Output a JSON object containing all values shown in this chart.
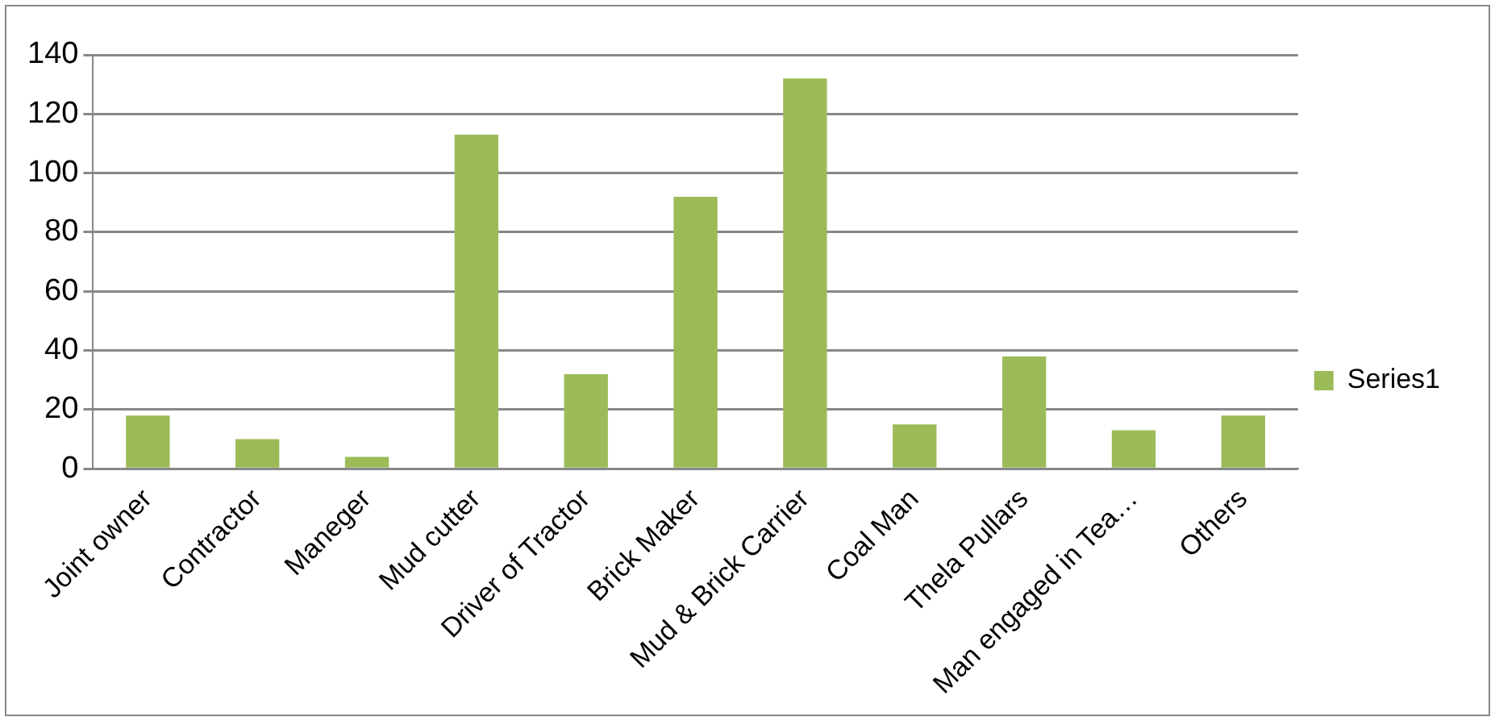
{
  "chart_data": {
    "type": "bar",
    "categories": [
      "Joint owner",
      "Contractor",
      "Maneger",
      "Mud cutter",
      "Driver of Tractor",
      "Brick Maker",
      "Mud & Brick Carrier",
      "Coal Man",
      "Thela Pullars",
      "Man engaged in Tea…",
      "Others"
    ],
    "series": [
      {
        "name": "Series1",
        "color": "#9bbb59",
        "values": [
          18,
          10,
          4,
          113,
          32,
          92,
          132,
          15,
          38,
          13,
          18
        ]
      }
    ],
    "ylim": [
      0,
      140
    ],
    "yticks": [
      0,
      20,
      40,
      60,
      80,
      100,
      120,
      140
    ],
    "grid": "y",
    "legend": "right"
  }
}
